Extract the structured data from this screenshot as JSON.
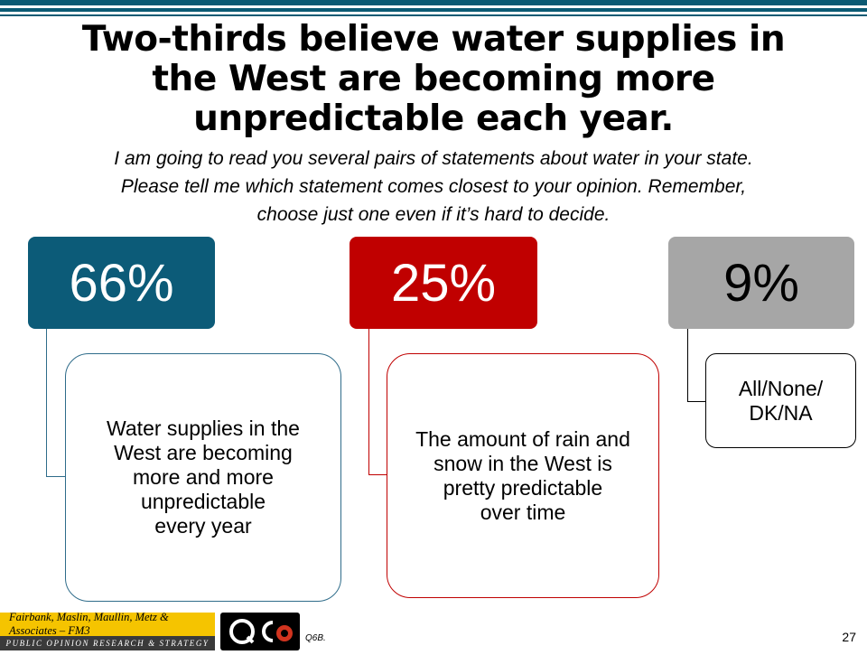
{
  "slide": {
    "title": "Two-thirds believe water supplies in the West are becoming more unpredictable each year.",
    "question": "I am going to read you several pairs of statements about water in your state.  Please tell me which statement comes closest to your opinion.  Remember, choose just one even if it’s hard to decide.",
    "results": [
      {
        "percent": "66%",
        "statement": "Water supplies in the\nWest are becoming\nmore and more\nunpredictable\nevery year",
        "color": "#0c5b78"
      },
      {
        "percent": "25%",
        "statement": "The amount of rain and\nsnow in the West is\npretty predictable\nover time",
        "color": "#c00000"
      },
      {
        "percent": "9%",
        "statement": "All/None/\nDK/NA",
        "color": "#a6a6a6"
      }
    ]
  },
  "footer": {
    "firm_name": "Fairbank, Maslin, Maullin, Metz & Associates – FM3",
    "firm_tagline": "PUBLIC OPINION RESEARCH & STRATEGY",
    "partner_logo": "QCA",
    "question_code": "Q6B.",
    "page_number": "27"
  }
}
